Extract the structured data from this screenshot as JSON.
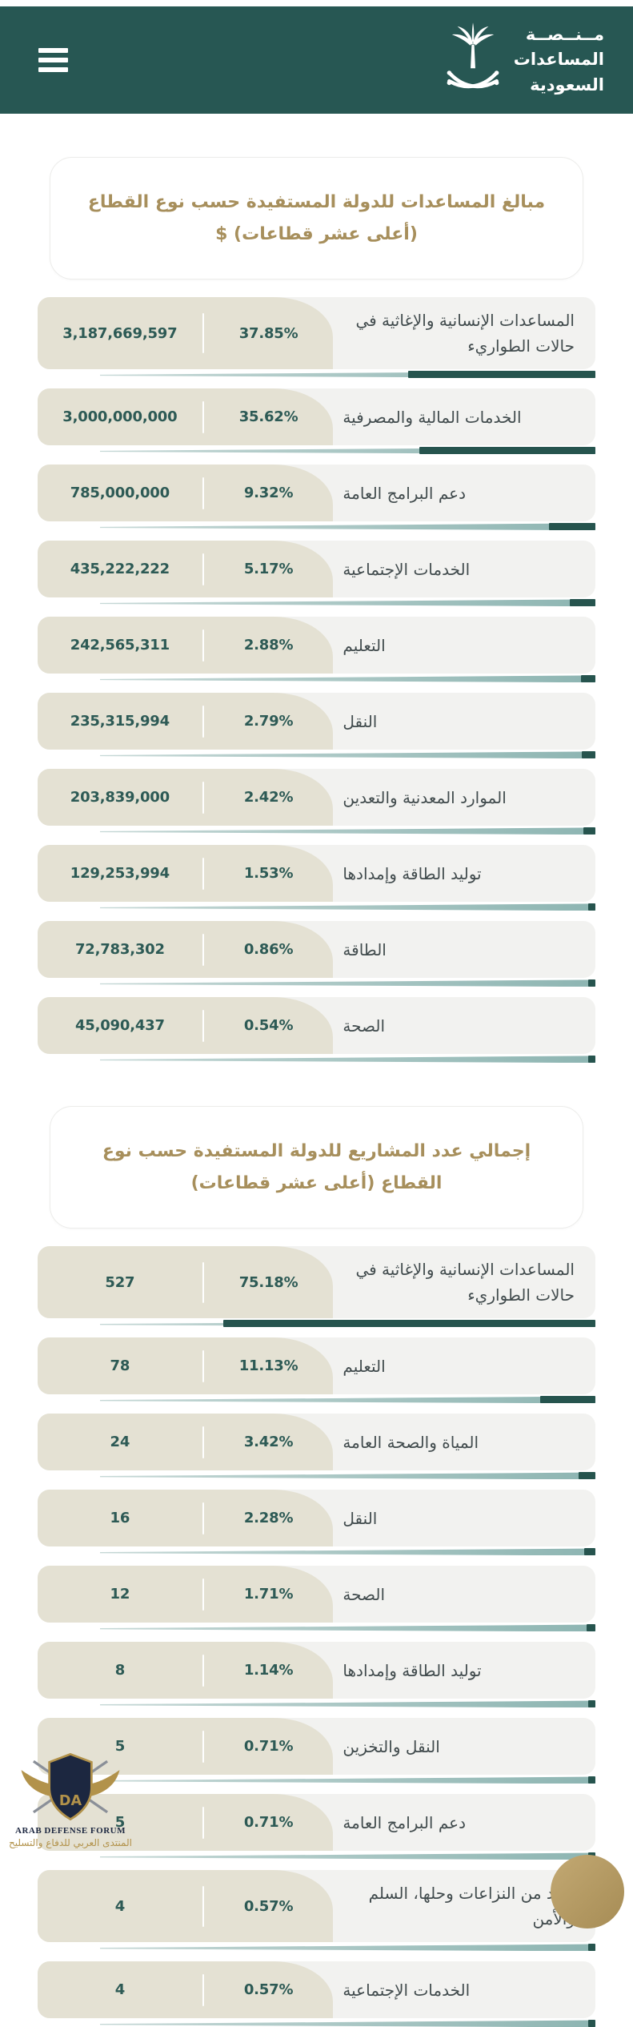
{
  "header": {
    "logo_line1": "مــنــصــة",
    "logo_line2": "المساعدات",
    "logo_line3": "السعودية"
  },
  "sections": [
    {
      "title": "مبالغ المساعدات للدولة المستفيدة حسب نوع القطاع (أعلى عشر قطاعات) $",
      "rows": [
        {
          "label": "المساعدات الإنسانية والإغاثية في حالات الطواريء",
          "percent": "37.85%",
          "value": "3,187,669,597",
          "pct": 37.85
        },
        {
          "label": "الخدمات المالية والمصرفية",
          "percent": "35.62%",
          "value": "3,000,000,000",
          "pct": 35.62
        },
        {
          "label": "دعم البرامج العامة",
          "percent": "9.32%",
          "value": "785,000,000",
          "pct": 9.32
        },
        {
          "label": "الخدمات الإجتماعية",
          "percent": "5.17%",
          "value": "435,222,222",
          "pct": 5.17
        },
        {
          "label": "التعليم",
          "percent": "2.88%",
          "value": "242,565,311",
          "pct": 2.88
        },
        {
          "label": "النقل",
          "percent": "2.79%",
          "value": "235,315,994",
          "pct": 2.79
        },
        {
          "label": "الموارد المعدنية والتعدين",
          "percent": "2.42%",
          "value": "203,839,000",
          "pct": 2.42
        },
        {
          "label": "توليد الطاقة وإمدادها",
          "percent": "1.53%",
          "value": "129,253,994",
          "pct": 1.53
        },
        {
          "label": "الطاقة",
          "percent": "0.86%",
          "value": "72,783,302",
          "pct": 0.86
        },
        {
          "label": "الصحة",
          "percent": "0.54%",
          "value": "45,090,437",
          "pct": 0.54
        }
      ]
    },
    {
      "title": "إجمالي عدد المشاريع للدولة المستفيدة حسب نوع القطاع (أعلى عشر قطاعات)",
      "rows": [
        {
          "label": "المساعدات الإنسانية والإغاثية في حالات الطواريء",
          "percent": "75.18%",
          "value": "527",
          "pct": 75.18
        },
        {
          "label": "التعليم",
          "percent": "11.13%",
          "value": "78",
          "pct": 11.13
        },
        {
          "label": "المياة والصحة العامة",
          "percent": "3.42%",
          "value": "24",
          "pct": 3.42
        },
        {
          "label": "النقل",
          "percent": "2.28%",
          "value": "16",
          "pct": 2.28
        },
        {
          "label": "الصحة",
          "percent": "1.71%",
          "value": "12",
          "pct": 1.71
        },
        {
          "label": "توليد الطاقة وإمدادها",
          "percent": "1.14%",
          "value": "8",
          "pct": 1.14
        },
        {
          "label": "النقل والتخزين",
          "percent": "0.71%",
          "value": "5",
          "pct": 0.71
        },
        {
          "label": "دعم البرامج العامة",
          "percent": "0.71%",
          "value": "5",
          "pct": 0.71
        },
        {
          "label": "الحد من النزاعات وحلها، السلم والأمن",
          "percent": "0.57%",
          "value": "4",
          "pct": 0.57
        },
        {
          "label": "الخدمات الإجتماعية",
          "percent": "0.57%",
          "value": "4",
          "pct": 0.57
        }
      ]
    }
  ],
  "watermark": {
    "initials": "DA",
    "line_en": "ARAB DEFENSE FORUM",
    "line_ar": "المنتدى العربي للدفاع والتسليح"
  },
  "colors": {
    "header_teal": "#275753",
    "title_gold": "#a78f5c",
    "value_teal": "#2d5a55",
    "beige": "#e4e1d3",
    "bar_dark": "#26544e",
    "bar_light": "#8db5b2"
  }
}
